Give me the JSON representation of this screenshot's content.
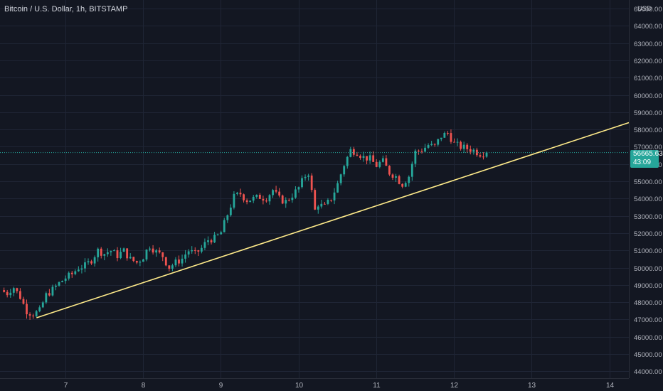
{
  "header": {
    "symbol_title": "Bitcoin / U.S. Dollar, 1h, BITSTAMP",
    "currency": "USD"
  },
  "price_tag": {
    "price": "56665.63",
    "countdown": "43:09"
  },
  "colors": {
    "background": "#131722",
    "grid": "#1f2535",
    "up": "#26a69a",
    "down": "#ef5350",
    "trendline": "#ffeb8a",
    "axis_text": "#b2b5be"
  },
  "chart_data": {
    "type": "candlestick",
    "interval": "1h",
    "x_ticks": [
      "7",
      "8",
      "9",
      "10",
      "11",
      "12",
      "13",
      "14"
    ],
    "y_ticks": [
      "44000.00",
      "45000.00",
      "46000.00",
      "47000.00",
      "48000.00",
      "49000.00",
      "50000.00",
      "51000.00",
      "52000.00",
      "53000.00",
      "54000.00",
      "55000.00",
      "56000.00",
      "57000.00",
      "58000.00",
      "59000.00",
      "60000.00",
      "61000.00",
      "62000.00",
      "63000.00",
      "64000.00",
      "65000.00"
    ],
    "ylim": [
      43600,
      65500
    ],
    "xlim": [
      6.16,
      14.25
    ],
    "last_price": 56665.63,
    "grid": true,
    "close_path": [
      [
        6.17,
        48700
      ],
      [
        6.25,
        48500
      ],
      [
        6.33,
        48900
      ],
      [
        6.42,
        48300
      ],
      [
        6.5,
        47500
      ],
      [
        6.58,
        47300
      ],
      [
        6.67,
        47500
      ],
      [
        6.75,
        48400
      ],
      [
        6.83,
        48700
      ],
      [
        6.92,
        49100
      ],
      [
        7.0,
        49400
      ],
      [
        7.08,
        49600
      ],
      [
        7.17,
        50000
      ],
      [
        7.25,
        50100
      ],
      [
        7.33,
        50400
      ],
      [
        7.42,
        51000
      ],
      [
        7.5,
        50800
      ],
      [
        7.58,
        51000
      ],
      [
        7.67,
        50700
      ],
      [
        7.75,
        51000
      ],
      [
        7.83,
        50500
      ],
      [
        7.92,
        50300
      ],
      [
        8.0,
        50600
      ],
      [
        8.08,
        51300
      ],
      [
        8.17,
        50900
      ],
      [
        8.25,
        50700
      ],
      [
        8.33,
        50000
      ],
      [
        8.42,
        50300
      ],
      [
        8.5,
        50500
      ],
      [
        8.58,
        51000
      ],
      [
        8.67,
        50800
      ],
      [
        8.75,
        51100
      ],
      [
        8.83,
        51600
      ],
      [
        8.92,
        51700
      ],
      [
        9.0,
        52000
      ],
      [
        9.08,
        53000
      ],
      [
        9.17,
        54100
      ],
      [
        9.25,
        54300
      ],
      [
        9.33,
        53900
      ],
      [
        9.42,
        54000
      ],
      [
        9.5,
        54100
      ],
      [
        9.58,
        54000
      ],
      [
        9.67,
        54500
      ],
      [
        9.75,
        54000
      ],
      [
        9.83,
        53800
      ],
      [
        9.92,
        54200
      ],
      [
        10.0,
        54600
      ],
      [
        10.08,
        55300
      ],
      [
        10.13,
        55500
      ],
      [
        10.17,
        54400
      ],
      [
        10.21,
        53300
      ],
      [
        10.25,
        53700
      ],
      [
        10.33,
        53500
      ],
      [
        10.42,
        54000
      ],
      [
        10.5,
        54800
      ],
      [
        10.58,
        55900
      ],
      [
        10.67,
        56800
      ],
      [
        10.75,
        56700
      ],
      [
        10.83,
        56400
      ],
      [
        10.92,
        56300
      ],
      [
        11.0,
        55900
      ],
      [
        11.08,
        56200
      ],
      [
        11.17,
        55500
      ],
      [
        11.25,
        55300
      ],
      [
        11.33,
        54800
      ],
      [
        11.42,
        55300
      ],
      [
        11.5,
        56700
      ],
      [
        11.58,
        56800
      ],
      [
        11.67,
        57100
      ],
      [
        11.75,
        57000
      ],
      [
        11.83,
        57600
      ],
      [
        11.92,
        57800
      ],
      [
        12.0,
        57200
      ],
      [
        12.08,
        57000
      ],
      [
        12.17,
        56900
      ],
      [
        12.25,
        56800
      ],
      [
        12.33,
        56600
      ],
      [
        12.42,
        56665.63
      ]
    ],
    "trendline": {
      "start": [
        6.63,
        47100
      ],
      "end": [
        14.25,
        58400
      ]
    }
  }
}
